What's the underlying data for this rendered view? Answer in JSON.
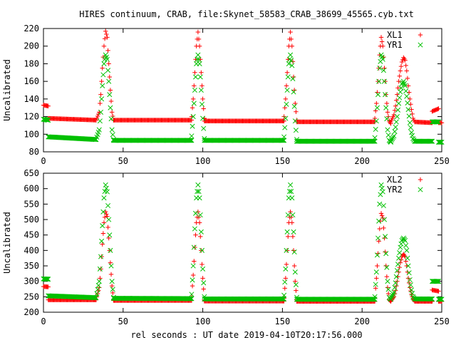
{
  "figure": {
    "title": "HIRES continuum, CRAB, file:Skynet_58583_CRAB_38699_45565.cyb.txt",
    "xlabel": "rel seconds : UT date 2019-04-10T20:17:56.000"
  },
  "colors": {
    "xl": "#ff0000",
    "yr": "#00c000",
    "axes": "#000000"
  },
  "chart_data": [
    {
      "type": "scatter",
      "title": "",
      "xlabel": "",
      "ylabel": "Uncalibrated",
      "xlim": [
        0,
        250
      ],
      "ylim": [
        80,
        220
      ],
      "xticks": [
        0,
        50,
        100,
        150,
        200,
        250
      ],
      "yticks": [
        80,
        100,
        120,
        140,
        160,
        180,
        200,
        220
      ],
      "legend_position": "top-right",
      "series": [
        {
          "name": "XL1",
          "marker": "plus",
          "color": "#ff0000",
          "segments": [
            {
              "x": [
                0,
                3
              ],
              "y": [
                133,
                132
              ]
            },
            {
              "x": [
                3,
                33
              ],
              "y": [
                118,
                116
              ]
            },
            {
              "x": [
                33,
                35,
                36,
                37,
                38,
                39,
                40,
                41,
                42,
                43,
                44
              ],
              "y": [
                116,
                125,
                145,
                175,
                200,
                217,
                210,
                180,
                150,
                125,
                116
              ]
            },
            {
              "x": [
                44,
                93
              ],
              "y": [
                116,
                116
              ]
            },
            {
              "x": [
                93,
                94,
                95,
                96,
                97,
                98,
                99,
                100,
                101
              ],
              "y": [
                120,
                140,
                170,
                200,
                216,
                200,
                170,
                140,
                118
              ]
            },
            {
              "x": [
                101,
                151
              ],
              "y": [
                115,
                115
              ]
            },
            {
              "x": [
                151,
                152,
                153,
                154,
                155,
                156,
                157,
                158,
                159
              ],
              "y": [
                120,
                140,
                170,
                200,
                216,
                200,
                165,
                135,
                116
              ]
            },
            {
              "x": [
                159,
                208
              ],
              "y": [
                114,
                114
              ]
            },
            {
              "x": [
                208,
                209,
                210,
                211,
                212,
                213,
                214,
                215,
                216,
                217,
                218
              ],
              "y": [
                118,
                135,
                160,
                190,
                210,
                200,
                175,
                145,
                125,
                115,
                112
              ]
            },
            {
              "x": [
                218,
                220,
                221,
                222,
                223,
                224,
                225,
                226,
                227,
                228,
                229,
                230,
                231,
                232,
                233
              ],
              "y": [
                114,
                122,
                132,
                145,
                160,
                172,
                182,
                187,
                184,
                172,
                155,
                140,
                128,
                118,
                114
              ]
            },
            {
              "x": [
                233,
                244
              ],
              "y": [
                114,
                113
              ]
            },
            {
              "x": [
                244,
                248
              ],
              "y": [
                126,
                129
              ]
            },
            {
              "x": [
                248,
                250
              ],
              "y": [
                113,
                113
              ]
            }
          ]
        },
        {
          "name": "YR1",
          "marker": "cross",
          "color": "#00c000",
          "segments": [
            {
              "x": [
                0,
                3
              ],
              "y": [
                117,
                116
              ]
            },
            {
              "x": [
                3,
                33
              ],
              "y": [
                97,
                94
              ]
            },
            {
              "x": [
                33,
                35,
                36,
                37,
                38,
                39,
                40,
                41,
                42,
                43,
                44
              ],
              "y": [
                94,
                105,
                125,
                155,
                180,
                190,
                185,
                160,
                130,
                105,
                94
              ]
            },
            {
              "x": [
                44,
                93
              ],
              "y": [
                93,
                93
              ]
            },
            {
              "x": [
                93,
                94,
                95,
                96,
                97,
                98,
                99,
                100,
                101
              ],
              "y": [
                98,
                120,
                150,
                180,
                190,
                180,
                150,
                118,
                95
              ]
            },
            {
              "x": [
                101,
                151
              ],
              "y": [
                93,
                93
              ]
            },
            {
              "x": [
                151,
                152,
                153,
                154,
                155,
                156,
                157,
                158,
                159
              ],
              "y": [
                97,
                118,
                150,
                180,
                190,
                178,
                148,
                115,
                94
              ]
            },
            {
              "x": [
                159,
                208
              ],
              "y": [
                92,
                92
              ]
            },
            {
              "x": [
                208,
                209,
                210,
                211,
                212,
                213,
                214,
                215,
                216,
                217,
                218
              ],
              "y": [
                96,
                115,
                145,
                175,
                190,
                185,
                160,
                130,
                105,
                93,
                91
              ]
            },
            {
              "x": [
                218,
                220,
                221,
                222,
                223,
                224,
                225,
                226,
                227,
                228,
                229,
                230,
                231,
                232,
                233
              ],
              "y": [
                92,
                98,
                108,
                120,
                135,
                148,
                157,
                160,
                155,
                143,
                128,
                113,
                102,
                95,
                92
              ]
            },
            {
              "x": [
                233,
                244
              ],
              "y": [
                92,
                92
              ]
            },
            {
              "x": [
                244,
                248
              ],
              "y": [
                114,
                114
              ]
            },
            {
              "x": [
                248,
                250
              ],
              "y": [
                91,
                91
              ]
            }
          ]
        }
      ]
    },
    {
      "type": "scatter",
      "title": "",
      "xlabel": "",
      "ylabel": "Uncalibrated",
      "xlim": [
        0,
        250
      ],
      "ylim": [
        200,
        650
      ],
      "xticks": [
        0,
        50,
        100,
        150,
        200,
        250
      ],
      "yticks": [
        200,
        250,
        300,
        350,
        400,
        450,
        500,
        550,
        600,
        650
      ],
      "legend_position": "top-right",
      "series": [
        {
          "name": "XL2",
          "marker": "plus",
          "color": "#ff0000",
          "segments": [
            {
              "x": [
                0,
                3
              ],
              "y": [
                283,
                282
              ]
            },
            {
              "x": [
                3,
                33
              ],
              "y": [
                240,
                240
              ]
            },
            {
              "x": [
                33,
                35,
                36,
                37,
                38,
                39,
                40,
                41,
                42,
                43,
                44
              ],
              "y": [
                240,
                280,
                340,
                420,
                490,
                525,
                510,
                440,
                360,
                285,
                240
              ]
            },
            {
              "x": [
                44,
                93
              ],
              "y": [
                238,
                238
              ]
            },
            {
              "x": [
                93,
                94,
                95,
                96,
                97,
                98,
                99,
                100,
                101
              ],
              "y": [
                250,
                320,
                410,
                490,
                525,
                490,
                400,
                310,
                240
              ]
            },
            {
              "x": [
                101,
                151
              ],
              "y": [
                236,
                236
              ]
            },
            {
              "x": [
                151,
                152,
                153,
                154,
                155,
                156,
                157,
                158,
                159
              ],
              "y": [
                245,
                310,
                400,
                490,
                525,
                490,
                400,
                300,
                240
              ]
            },
            {
              "x": [
                159,
                208
              ],
              "y": [
                235,
                235
              ]
            },
            {
              "x": [
                208,
                209,
                210,
                211,
                212,
                213,
                214,
                215,
                216,
                217,
                218
              ],
              "y": [
                245,
                310,
                390,
                470,
                520,
                505,
                440,
                350,
                280,
                240,
                235
              ]
            },
            {
              "x": [
                218,
                220,
                221,
                222,
                223,
                224,
                225,
                226,
                227,
                228,
                229,
                230,
                231,
                232,
                233
              ],
              "y": [
                236,
                250,
                270,
                300,
                330,
                360,
                380,
                388,
                380,
                350,
                310,
                280,
                258,
                242,
                236
              ]
            },
            {
              "x": [
                233,
                244
              ],
              "y": [
                235,
                235
              ]
            },
            {
              "x": [
                244,
                248
              ],
              "y": [
                272,
                268
              ]
            },
            {
              "x": [
                248,
                250
              ],
              "y": [
                235,
                235
              ]
            }
          ]
        },
        {
          "name": "YR2",
          "marker": "cross",
          "color": "#00c000",
          "segments": [
            {
              "x": [
                0,
                3
              ],
              "y": [
                308,
                307
              ]
            },
            {
              "x": [
                3,
                33
              ],
              "y": [
                253,
                247
              ]
            },
            {
              "x": [
                33,
                35,
                36,
                37,
                38,
                39,
                40,
                41,
                42,
                43,
                44
              ],
              "y": [
                247,
                300,
                380,
                480,
                570,
                612,
                590,
                500,
                400,
                300,
                248
              ]
            },
            {
              "x": [
                44,
                93
              ],
              "y": [
                245,
                244
              ]
            },
            {
              "x": [
                93,
                94,
                95,
                96,
                97,
                98,
                99,
                100,
                101
              ],
              "y": [
                258,
                350,
                470,
                570,
                612,
                570,
                460,
                340,
                250
              ]
            },
            {
              "x": [
                101,
                151
              ],
              "y": [
                243,
                243
              ]
            },
            {
              "x": [
                151,
                152,
                153,
                154,
                155,
                156,
                157,
                158,
                159
              ],
              "y": [
                255,
                340,
                460,
                570,
                612,
                570,
                460,
                330,
                248
              ]
            },
            {
              "x": [
                159,
                208
              ],
              "y": [
                242,
                242
              ]
            },
            {
              "x": [
                208,
                209,
                210,
                211,
                212,
                213,
                214,
                215,
                216,
                217,
                218
              ],
              "y": [
                250,
                330,
                440,
                550,
                612,
                590,
                500,
                390,
                300,
                248,
                242
              ]
            },
            {
              "x": [
                218,
                220,
                221,
                222,
                223,
                224,
                225,
                226,
                227,
                228,
                229,
                230,
                231,
                232,
                233
              ],
              "y": [
                243,
                265,
                295,
                335,
                375,
                410,
                432,
                440,
                432,
                400,
                350,
                305,
                272,
                250,
                243
              ]
            },
            {
              "x": [
                233,
                244
              ],
              "y": [
                243,
                243
              ]
            },
            {
              "x": [
                244,
                248
              ],
              "y": [
                300,
                300
              ]
            },
            {
              "x": [
                248,
                250
              ],
              "y": [
                242,
                242
              ]
            }
          ]
        }
      ]
    }
  ]
}
